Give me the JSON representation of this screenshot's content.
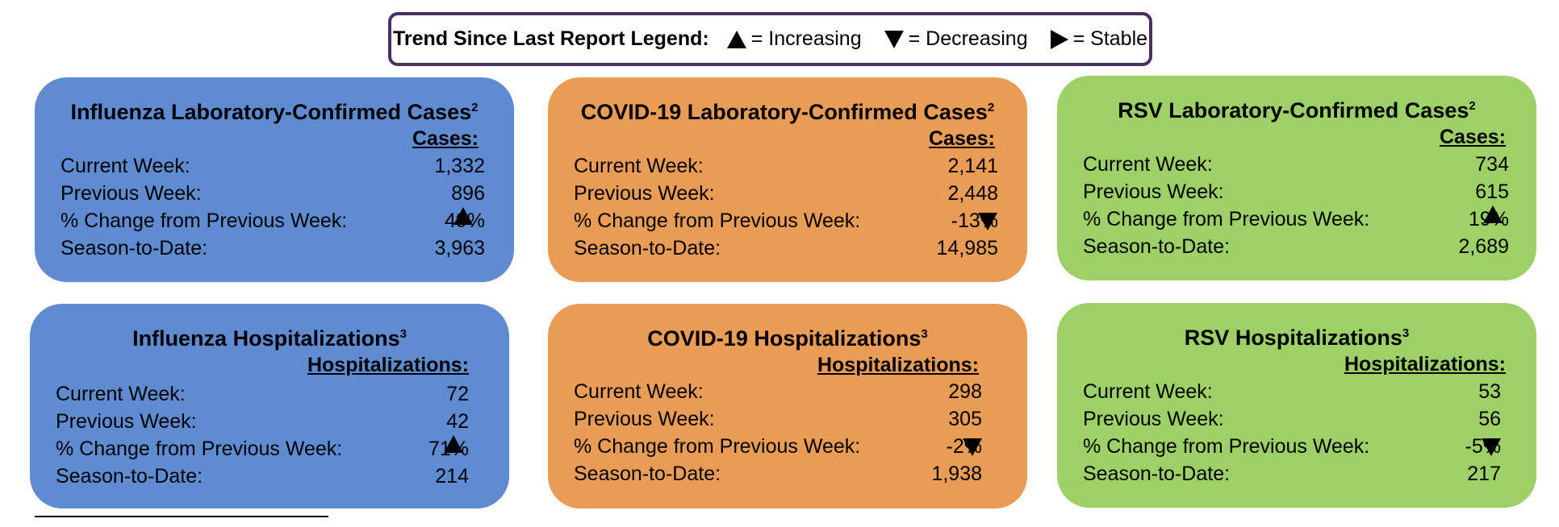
{
  "legend": {
    "title": "Trend Since Last Report Legend:",
    "increasing": "= Increasing",
    "decreasing": "= Decreasing",
    "stable": "= Stable"
  },
  "labels": {
    "current_week": "Current Week:",
    "previous_week": "Previous Week:",
    "pct_change": "% Change from Previous Week:",
    "season_to_date": "Season-to-Date:"
  },
  "cards": {
    "flu_cases": {
      "title": "Influenza Laboratory-Confirmed Cases",
      "note": "2",
      "column": "Cases:",
      "current": "1,332",
      "previous": "896",
      "change": "49%",
      "trend": "increasing",
      "season": "3,963",
      "color": "#5f8bd0"
    },
    "covid_cases": {
      "title": "COVID-19 Laboratory-Confirmed Cases",
      "note": "2",
      "column": "Cases:",
      "current": "2,141",
      "previous": "2,448",
      "change": "-13%",
      "trend": "decreasing",
      "season": "14,985",
      "color": "#e99c56"
    },
    "rsv_cases": {
      "title": "RSV Laboratory-Confirmed Cases",
      "note": "2",
      "column": "Cases:",
      "current": "734",
      "previous": "615",
      "change": "19%",
      "trend": "increasing",
      "season": "2,689",
      "color": "#9dd066"
    },
    "flu_hosp": {
      "title": "Influenza Hospitalizations",
      "note": "3",
      "column": "Hospitalizations:",
      "current": "72",
      "previous": "42",
      "change": "71%",
      "trend": "increasing",
      "season": "214",
      "color": "#5f8bd0"
    },
    "covid_hosp": {
      "title": "COVID-19 Hospitalizations",
      "note": "3",
      "column": "Hospitalizations:",
      "current": "298",
      "previous": "305",
      "change": "-2%",
      "trend": "decreasing",
      "season": "1,938",
      "color": "#e99c56"
    },
    "rsv_hosp": {
      "title": "RSV Hospitalizations",
      "note": "3",
      "column": "Hospitalizations:",
      "current": "53",
      "previous": "56",
      "change": "-5%",
      "trend": "decreasing",
      "season": "217",
      "color": "#9dd066"
    }
  }
}
